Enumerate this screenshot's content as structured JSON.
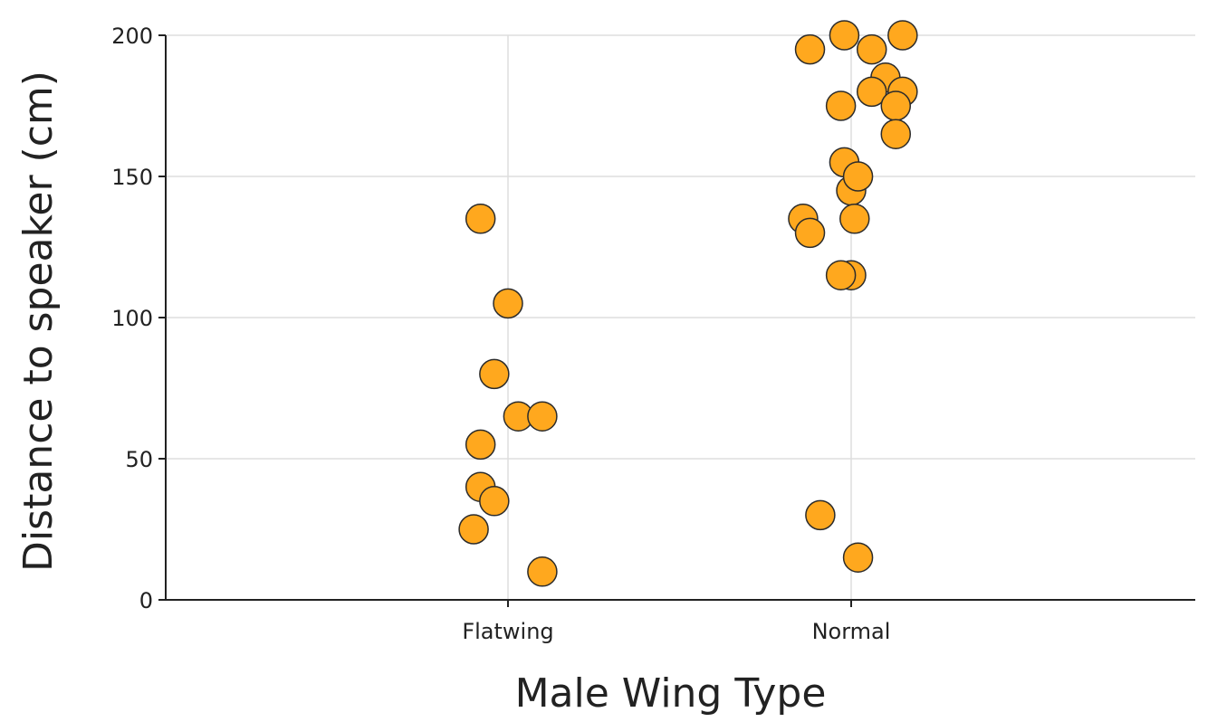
{
  "chart_data": {
    "type": "scatter",
    "title": "",
    "xlabel": "Male Wing Type",
    "ylabel": "Distance to speaker (cm)",
    "categories": [
      "Flatwing",
      "Normal"
    ],
    "ylim": [
      0,
      200
    ],
    "yticks": [
      0,
      50,
      100,
      150,
      200
    ],
    "grid": true,
    "point_color": "#FFA81E",
    "point_edge_color": "#2b2b2b",
    "series": [
      {
        "category": "Flatwing",
        "points": [
          {
            "jitter": -0.08,
            "y": 135
          },
          {
            "jitter": 0.0,
            "y": 105
          },
          {
            "jitter": -0.04,
            "y": 80
          },
          {
            "jitter": 0.03,
            "y": 65
          },
          {
            "jitter": 0.1,
            "y": 65
          },
          {
            "jitter": -0.08,
            "y": 55
          },
          {
            "jitter": -0.08,
            "y": 40
          },
          {
            "jitter": -0.04,
            "y": 35
          },
          {
            "jitter": -0.1,
            "y": 25
          },
          {
            "jitter": 0.1,
            "y": 10
          }
        ]
      },
      {
        "category": "Normal",
        "points": [
          {
            "jitter": -0.02,
            "y": 200
          },
          {
            "jitter": 0.15,
            "y": 200
          },
          {
            "jitter": -0.12,
            "y": 195
          },
          {
            "jitter": 0.06,
            "y": 195
          },
          {
            "jitter": 0.1,
            "y": 185
          },
          {
            "jitter": 0.06,
            "y": 180
          },
          {
            "jitter": 0.15,
            "y": 180
          },
          {
            "jitter": -0.03,
            "y": 175
          },
          {
            "jitter": 0.13,
            "y": 175
          },
          {
            "jitter": 0.13,
            "y": 165
          },
          {
            "jitter": -0.02,
            "y": 155
          },
          {
            "jitter": 0.0,
            "y": 145
          },
          {
            "jitter": 0.02,
            "y": 150
          },
          {
            "jitter": -0.14,
            "y": 135
          },
          {
            "jitter": 0.01,
            "y": 135
          },
          {
            "jitter": -0.12,
            "y": 130
          },
          {
            "jitter": 0.0,
            "y": 115
          },
          {
            "jitter": -0.03,
            "y": 115
          },
          {
            "jitter": -0.09,
            "y": 30
          },
          {
            "jitter": 0.02,
            "y": 15
          }
        ]
      }
    ]
  }
}
